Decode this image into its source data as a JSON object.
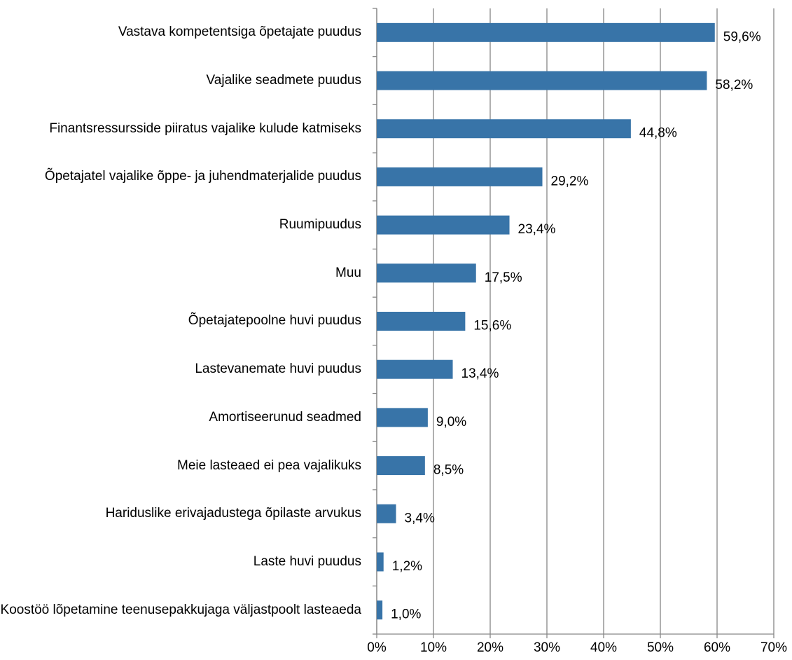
{
  "chart_data": {
    "type": "bar",
    "orientation": "horizontal",
    "categories": [
      "Vastava kompetentsiga õpetajate puudus",
      "Vajalike seadmete puudus",
      "Finantsressursside piiratus vajalike kulude katmiseks",
      "Õpetajatel vajalike õppe- ja juhendmaterjalide puudus",
      "Ruumipuudus",
      "Muu",
      "Õpetajatepoolne huvi puudus",
      "Lastevanemate huvi puudus",
      "Amortiseerunud seadmed",
      "Meie lasteaed ei pea vajalikuks",
      "Hariduslike erivajadustega õpilaste arvukus",
      "Laste huvi puudus",
      "Koostöö lõpetamine teenusepakkujaga väljastpoolt lasteaeda"
    ],
    "values": [
      59.6,
      58.2,
      44.8,
      29.2,
      23.4,
      17.5,
      15.6,
      13.4,
      9.0,
      8.5,
      3.4,
      1.2,
      1.0
    ],
    "value_labels": [
      "59,6%",
      "58,2%",
      "44,8%",
      "29,2%",
      "23,4%",
      "17,5%",
      "15,6%",
      "13,4%",
      "9,0%",
      "8,5%",
      "3,4%",
      "1,2%",
      "1,0%"
    ],
    "color": "#3874a8",
    "xlim": [
      0,
      70
    ],
    "xticks": [
      {
        "value": 0,
        "label": "0%"
      },
      {
        "value": 10,
        "label": "10%"
      },
      {
        "value": 20,
        "label": "20%"
      },
      {
        "value": 30,
        "label": "30%"
      },
      {
        "value": 40,
        "label": "40%"
      },
      {
        "value": 50,
        "label": "50%"
      },
      {
        "value": 60,
        "label": "60%"
      },
      {
        "value": 70,
        "label": "70%"
      }
    ],
    "grid": true
  }
}
